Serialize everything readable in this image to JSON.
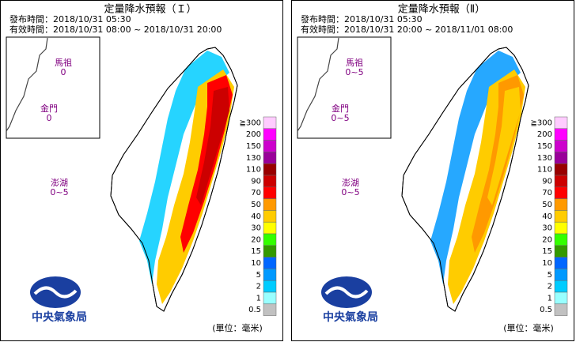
{
  "panels": [
    {
      "title": "定量降水預報（Ｉ）",
      "issued": "發布時間：2018/10/31 05:30",
      "valid": "有效時間：2018/10/31 08:00 ~ 2018/10/31 20:00",
      "islands": [
        {
          "name": "馬祖",
          "value": "0"
        },
        {
          "name": "金門",
          "value": "0"
        },
        {
          "name": "澎湖",
          "value": "0~5"
        }
      ],
      "logo_text": "中央氣象局",
      "unit": "(單位：毫米)"
    },
    {
      "title": "定量降水預報（Ⅱ）",
      "issued": "發布時間：2018/10/31 05:30",
      "valid": "有效時間：2018/10/31 20:00 ~ 2018/11/01 08:00",
      "islands": [
        {
          "name": "馬祖",
          "value": "0~5"
        },
        {
          "name": "金門",
          "value": "0~5"
        },
        {
          "name": "澎湖",
          "value": "0~5"
        }
      ],
      "logo_text": "中央氣象局",
      "unit": "(單位：毫米)"
    }
  ],
  "legend": {
    "levels": [
      "≧300",
      "200",
      "150",
      "130",
      "110",
      "90",
      "70",
      "50",
      "40",
      "30",
      "20",
      "15",
      "10",
      "5",
      "2",
      "1",
      "0.5"
    ],
    "colors": [
      "#ffccff",
      "#ff00ff",
      "#cc00cc",
      "#990099",
      "#990000",
      "#cc0000",
      "#ff0000",
      "#ff9900",
      "#ffcc00",
      "#ffff00",
      "#33ff00",
      "#339900",
      "#0066ff",
      "#0099ff",
      "#00ccff",
      "#99ffff",
      "#c1c1c1"
    ]
  }
}
